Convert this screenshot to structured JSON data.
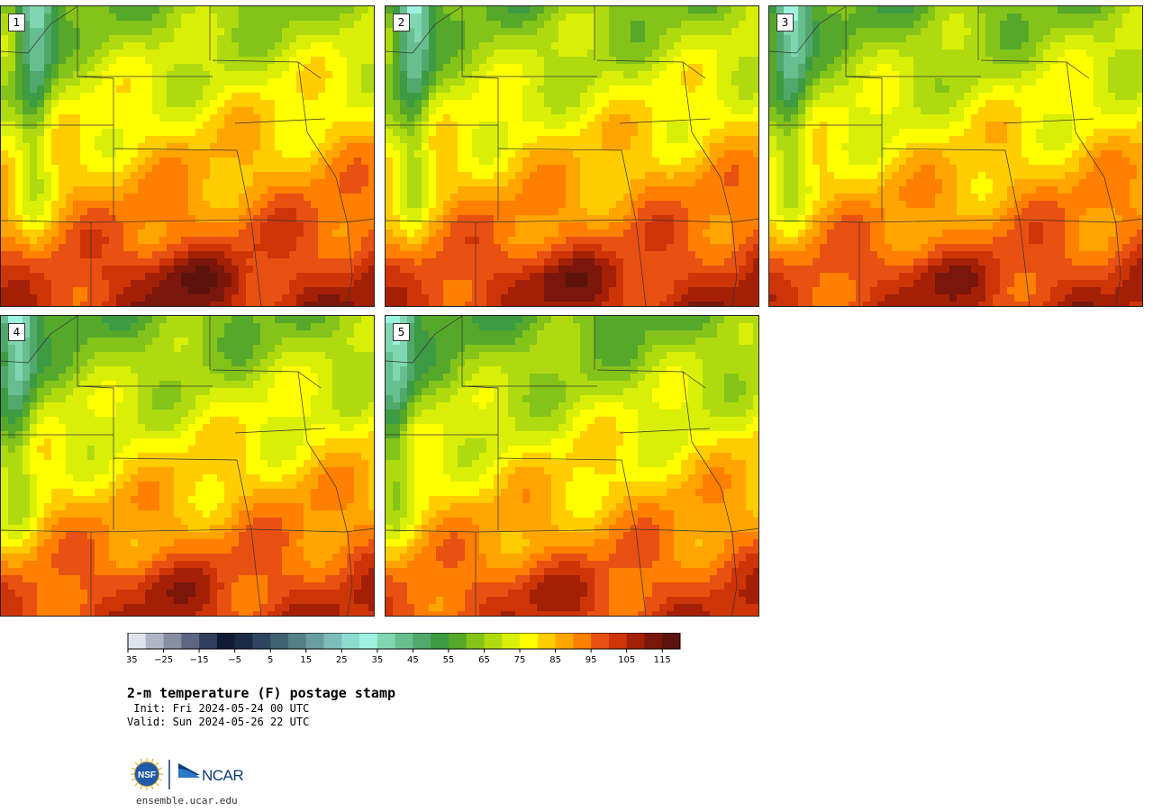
{
  "members": [
    {
      "label": "1",
      "hot": 1.0
    },
    {
      "label": "2",
      "hot": 1.0
    },
    {
      "label": "3",
      "hot": 0.8
    },
    {
      "label": "4",
      "hot": 0.7
    },
    {
      "label": "5",
      "hot": 0.65
    }
  ],
  "colorbar": {
    "unit": "F",
    "ticks": [
      "−35",
      "−25",
      "−15",
      "−5",
      "5",
      "15",
      "25",
      "35",
      "45",
      "55",
      "65",
      "75",
      "85",
      "95",
      "105",
      "115"
    ],
    "colors": [
      "#dfe3ec",
      "#b2b5c8",
      "#878da3",
      "#5c6680",
      "#313d5d",
      "#101a33",
      "#1b2a44",
      "#2e4460",
      "#40606f",
      "#537f86",
      "#6a9da2",
      "#7dbcba",
      "#8edbd0",
      "#9ef2e0",
      "#7fd6b0",
      "#67bf90",
      "#51a86c",
      "#3d9b43",
      "#55a82a",
      "#84c31a",
      "#b0da10",
      "#d9ef08",
      "#ffff00",
      "#ffcd00",
      "#ffa500",
      "#ff7f00",
      "#e95112",
      "#cd3508",
      "#a32007",
      "#7a160c",
      "#5d130d"
    ]
  },
  "title": "2-m temperature (F) postage stamp",
  "init_text": " Init: Fri 2024-05-24 00 UTC",
  "valid_text": "Valid: Sun 2024-05-26 22 UTC",
  "logos": {
    "nsf": "NSF",
    "ncar": "NCAR"
  },
  "website": "ensemble.ucar.edu"
}
